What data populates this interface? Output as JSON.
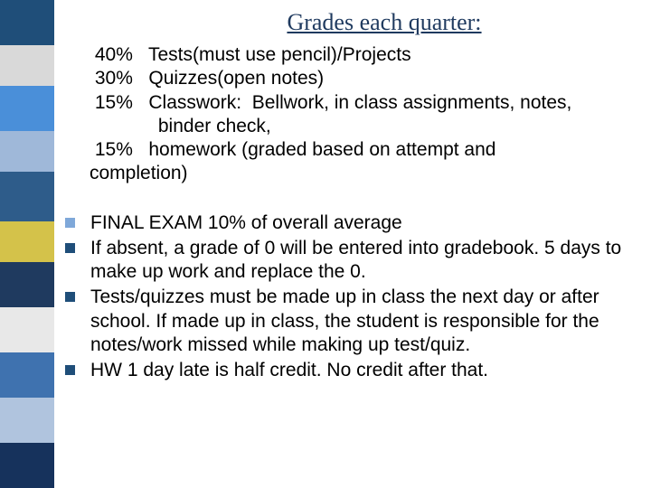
{
  "title": "Grades each quarter:",
  "title_color": "#1f3a5f",
  "sidebar_blocks": [
    {
      "color": "#1f4e79",
      "height": 50
    },
    {
      "color": "#d9d9d9",
      "height": 45
    },
    {
      "color": "#4a8fd9",
      "height": 50
    },
    {
      "color": "#9fb8d9",
      "height": 45
    },
    {
      "color": "#2e5c8a",
      "height": 55
    },
    {
      "color": "#d4c24a",
      "height": 45
    },
    {
      "color": "#1f3a5f",
      "height": 50
    },
    {
      "color": "#e8e8e8",
      "height": 50
    },
    {
      "color": "#3f72af",
      "height": 50
    },
    {
      "color": "#b0c4de",
      "height": 50
    },
    {
      "color": "#16325c",
      "height": 50
    }
  ],
  "grade_lines": [
    " 40%   Tests(must use pencil)/Projects",
    " 30%   Quizzes(open notes)",
    " 15%   Classwork:  Bellwork, in class assignments, notes,",
    "             binder check,",
    " 15%   homework (graded based on attempt and",
    "completion)"
  ],
  "bullets": [
    {
      "color": "#7fa8d9",
      "text": "FINAL EXAM  10% of overall average"
    },
    {
      "color": "#1f4e79",
      "text": "If absent, a grade of 0 will be entered into gradebook.  5 days to make up work and replace the 0."
    },
    {
      "color": "#1f4e79",
      "text": "Tests/quizzes must be made up in class the next day or after school.  If made up in class, the student is responsible for the notes/work missed while making up test/quiz."
    },
    {
      "color": "#1f4e79",
      "text": "HW 1 day late is half credit.  No credit after that."
    }
  ],
  "text_color": "#000000",
  "background_color": "#ffffff"
}
